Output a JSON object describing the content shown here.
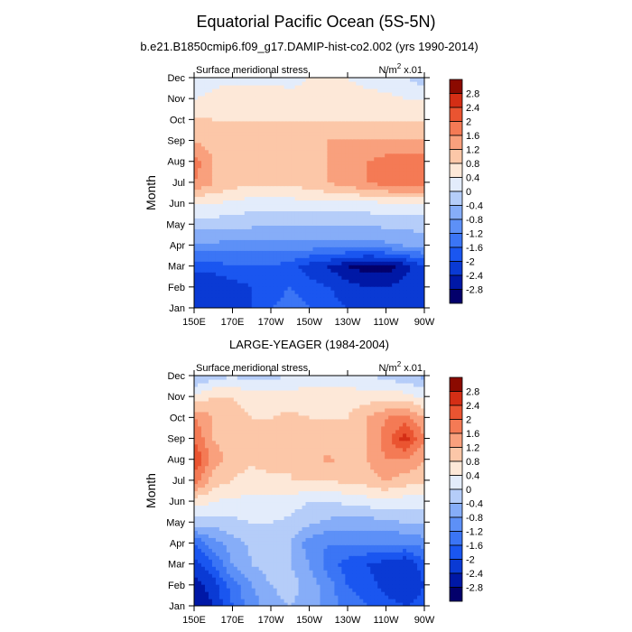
{
  "figure": {
    "title": "Equatorial Pacific Ocean (5S-5N)"
  },
  "chart_data": [
    {
      "type": "heatmap",
      "title": "b.e21.B1850cmip6.f09_g17.DAMIP-hist-co2.002 (yrs 1990-2014)",
      "left_label": "Surface meridional stress",
      "units": {
        "base": "N/m",
        "sup": "2",
        "rest": " x.01"
      },
      "xlabel": "",
      "ylabel": "Month",
      "xticks": [
        "150E",
        "170E",
        "170W",
        "150W",
        "130W",
        "110W",
        "90W"
      ],
      "yticks": [
        "Jan",
        "Feb",
        "Mar",
        "Apr",
        "May",
        "Jun",
        "Jul",
        "Aug",
        "Sep",
        "Oct",
        "Nov",
        "Dec"
      ],
      "xlim": [
        150,
        270
      ],
      "ylim": [
        1,
        12
      ],
      "x": [
        150,
        160,
        170,
        180,
        190,
        200,
        210,
        220,
        230,
        240,
        250,
        260,
        270
      ],
      "y": [
        1,
        2,
        3,
        4,
        5,
        6,
        7,
        8,
        9,
        10,
        11,
        12
      ],
      "z": [
        [
          -2.2,
          -2.2,
          -2.0,
          -2.0,
          -1.6,
          -1.4,
          -1.6,
          -1.8,
          -2.0,
          -2.2,
          -2.2,
          -2.2,
          -2.0
        ],
        [
          -2.4,
          -2.4,
          -2.2,
          -2.0,
          -1.8,
          -1.6,
          -1.8,
          -2.0,
          -2.2,
          -2.4,
          -2.4,
          -2.2,
          -2.0
        ],
        [
          -1.8,
          -1.8,
          -1.6,
          -1.6,
          -1.6,
          -1.8,
          -2.2,
          -2.4,
          -2.8,
          -3.0,
          -3.0,
          -2.6,
          -2.0
        ],
        [
          -0.9,
          -0.9,
          -1.0,
          -1.0,
          -1.0,
          -1.0,
          -1.0,
          -1.0,
          -1.0,
          -1.0,
          -0.9,
          -0.8,
          -0.7
        ],
        [
          -0.2,
          -0.2,
          -0.3,
          -0.3,
          -0.4,
          -0.4,
          -0.4,
          -0.4,
          -0.4,
          -0.4,
          -0.3,
          -0.3,
          -0.2
        ],
        [
          0.4,
          0.4,
          0.3,
          0.2,
          0.2,
          0.2,
          0.3,
          0.3,
          0.3,
          0.3,
          0.3,
          0.3,
          0.3
        ],
        [
          1.6,
          1.2,
          1.0,
          0.9,
          0.9,
          0.9,
          1.0,
          1.2,
          1.4,
          1.6,
          1.8,
          2.0,
          2.0
        ],
        [
          1.8,
          1.2,
          1.0,
          1.0,
          1.0,
          1.0,
          1.1,
          1.2,
          1.4,
          1.6,
          1.8,
          1.8,
          1.8
        ],
        [
          1.2,
          1.0,
          1.0,
          1.0,
          1.0,
          1.0,
          1.1,
          1.2,
          1.2,
          1.2,
          1.2,
          1.2,
          1.2
        ],
        [
          0.9,
          0.8,
          0.8,
          0.8,
          0.8,
          0.8,
          0.8,
          0.8,
          0.8,
          0.8,
          0.8,
          0.8,
          0.8
        ],
        [
          0.4,
          0.5,
          0.6,
          0.6,
          0.6,
          0.5,
          0.5,
          0.5,
          0.5,
          0.5,
          0.5,
          0.4,
          0.4
        ],
        [
          0.0,
          0.3,
          0.3,
          0.3,
          0.3,
          0.3,
          0.4,
          0.4,
          0.4,
          0.3,
          0.2,
          0.0,
          -0.2
        ]
      ],
      "colorbar": {
        "labels": [
          "2.8",
          "2.4",
          "2",
          "1.6",
          "1.2",
          "0.8",
          "0.4",
          "0",
          "-0.4",
          "-0.8",
          "-1.2",
          "-1.6",
          "-2",
          "-2.4",
          "-2.8"
        ],
        "levels": [
          -2.8,
          -2.4,
          -2.0,
          -1.6,
          -1.2,
          -0.8,
          -0.4,
          0.0,
          0.4,
          0.8,
          1.2,
          1.6,
          2.0,
          2.4,
          2.8
        ],
        "colors": [
          "#03006b",
          "#0018a6",
          "#0a3ad4",
          "#1a56f0",
          "#3b75f5",
          "#5d90f7",
          "#86adf8",
          "#b5cdf9",
          "#e3ecfb",
          "#fde8d8",
          "#fcc7a8",
          "#f9a07d",
          "#f47a55",
          "#ea5431",
          "#d42e15",
          "#8b0a00"
        ]
      }
    },
    {
      "type": "heatmap",
      "title": "LARGE-YEAGER (1984-2004)",
      "left_label": "Surface meridional stress",
      "units": {
        "base": "N/m",
        "sup": "2",
        "rest": " x.01"
      },
      "xlabel": "",
      "ylabel": "Month",
      "xticks": [
        "150E",
        "170E",
        "170W",
        "150W",
        "130W",
        "110W",
        "90W"
      ],
      "yticks": [
        "Jan",
        "Feb",
        "Mar",
        "Apr",
        "May",
        "Jun",
        "Jul",
        "Aug",
        "Sep",
        "Oct",
        "Nov",
        "Dec"
      ],
      "xlim": [
        150,
        270
      ],
      "ylim": [
        1,
        12
      ],
      "x": [
        150,
        160,
        170,
        180,
        190,
        200,
        210,
        220,
        230,
        240,
        250,
        260,
        270
      ],
      "y": [
        1,
        2,
        3,
        4,
        5,
        6,
        7,
        8,
        9,
        10,
        11,
        12
      ],
      "z": [
        [
          -2.8,
          -2.4,
          -1.6,
          -1.0,
          -0.6,
          -0.4,
          -0.6,
          -1.0,
          -1.4,
          -1.6,
          -1.8,
          -2.0,
          -1.8
        ],
        [
          -2.6,
          -2.2,
          -1.4,
          -0.8,
          -0.4,
          -0.2,
          -0.6,
          -1.0,
          -1.6,
          -1.8,
          -2.2,
          -2.4,
          -2.0
        ],
        [
          -2.2,
          -1.6,
          -0.8,
          -0.4,
          -0.2,
          -0.4,
          -0.8,
          -1.4,
          -1.8,
          -2.0,
          -2.2,
          -2.4,
          -1.8
        ],
        [
          -1.6,
          -1.0,
          -0.6,
          -0.3,
          -0.2,
          -0.4,
          -1.0,
          -1.2,
          -1.2,
          -1.2,
          -1.2,
          -1.2,
          -1.0
        ],
        [
          -0.2,
          -0.2,
          -0.1,
          0.0,
          0.0,
          -0.1,
          -0.3,
          -0.5,
          -0.6,
          -0.6,
          -0.5,
          -0.4,
          -0.3
        ],
        [
          0.6,
          0.4,
          0.3,
          0.3,
          0.3,
          0.2,
          0.0,
          0.0,
          0.1,
          0.2,
          0.3,
          0.2,
          0.2
        ],
        [
          1.8,
          1.0,
          0.8,
          0.6,
          0.7,
          0.8,
          0.8,
          0.8,
          0.9,
          1.0,
          1.2,
          1.0,
          0.9
        ],
        [
          2.4,
          1.4,
          1.0,
          0.9,
          1.0,
          0.8,
          1.0,
          1.3,
          1.0,
          1.2,
          1.6,
          1.6,
          1.2
        ],
        [
          2.0,
          1.2,
          1.0,
          0.8,
          0.8,
          0.9,
          0.8,
          0.9,
          0.8,
          1.2,
          1.8,
          2.6,
          1.6
        ],
        [
          1.6,
          1.2,
          1.0,
          0.8,
          0.8,
          0.9,
          0.8,
          0.8,
          0.8,
          1.2,
          1.6,
          1.8,
          1.2
        ],
        [
          0.5,
          0.8,
          0.8,
          0.6,
          0.6,
          0.6,
          0.6,
          0.5,
          0.6,
          0.6,
          0.6,
          0.6,
          0.3
        ],
        [
          -0.5,
          -0.2,
          0.0,
          -0.2,
          -0.1,
          0.0,
          0.2,
          0.3,
          0.2,
          0.0,
          -0.1,
          -0.3,
          -0.5
        ]
      ],
      "colorbar": {
        "labels": [
          "2.8",
          "2.4",
          "2",
          "1.6",
          "1.2",
          "0.8",
          "0.4",
          "0",
          "-0.4",
          "-0.8",
          "-1.2",
          "-1.6",
          "-2",
          "-2.4",
          "-2.8"
        ],
        "levels": [
          -2.8,
          -2.4,
          -2.0,
          -1.6,
          -1.2,
          -0.8,
          -0.4,
          0.0,
          0.4,
          0.8,
          1.2,
          1.6,
          2.0,
          2.4,
          2.8
        ],
        "colors": [
          "#03006b",
          "#0018a6",
          "#0a3ad4",
          "#1a56f0",
          "#3b75f5",
          "#5d90f7",
          "#86adf8",
          "#b5cdf9",
          "#e3ecfb",
          "#fde8d8",
          "#fcc7a8",
          "#f9a07d",
          "#f47a55",
          "#ea5431",
          "#d42e15",
          "#8b0a00"
        ]
      }
    }
  ]
}
